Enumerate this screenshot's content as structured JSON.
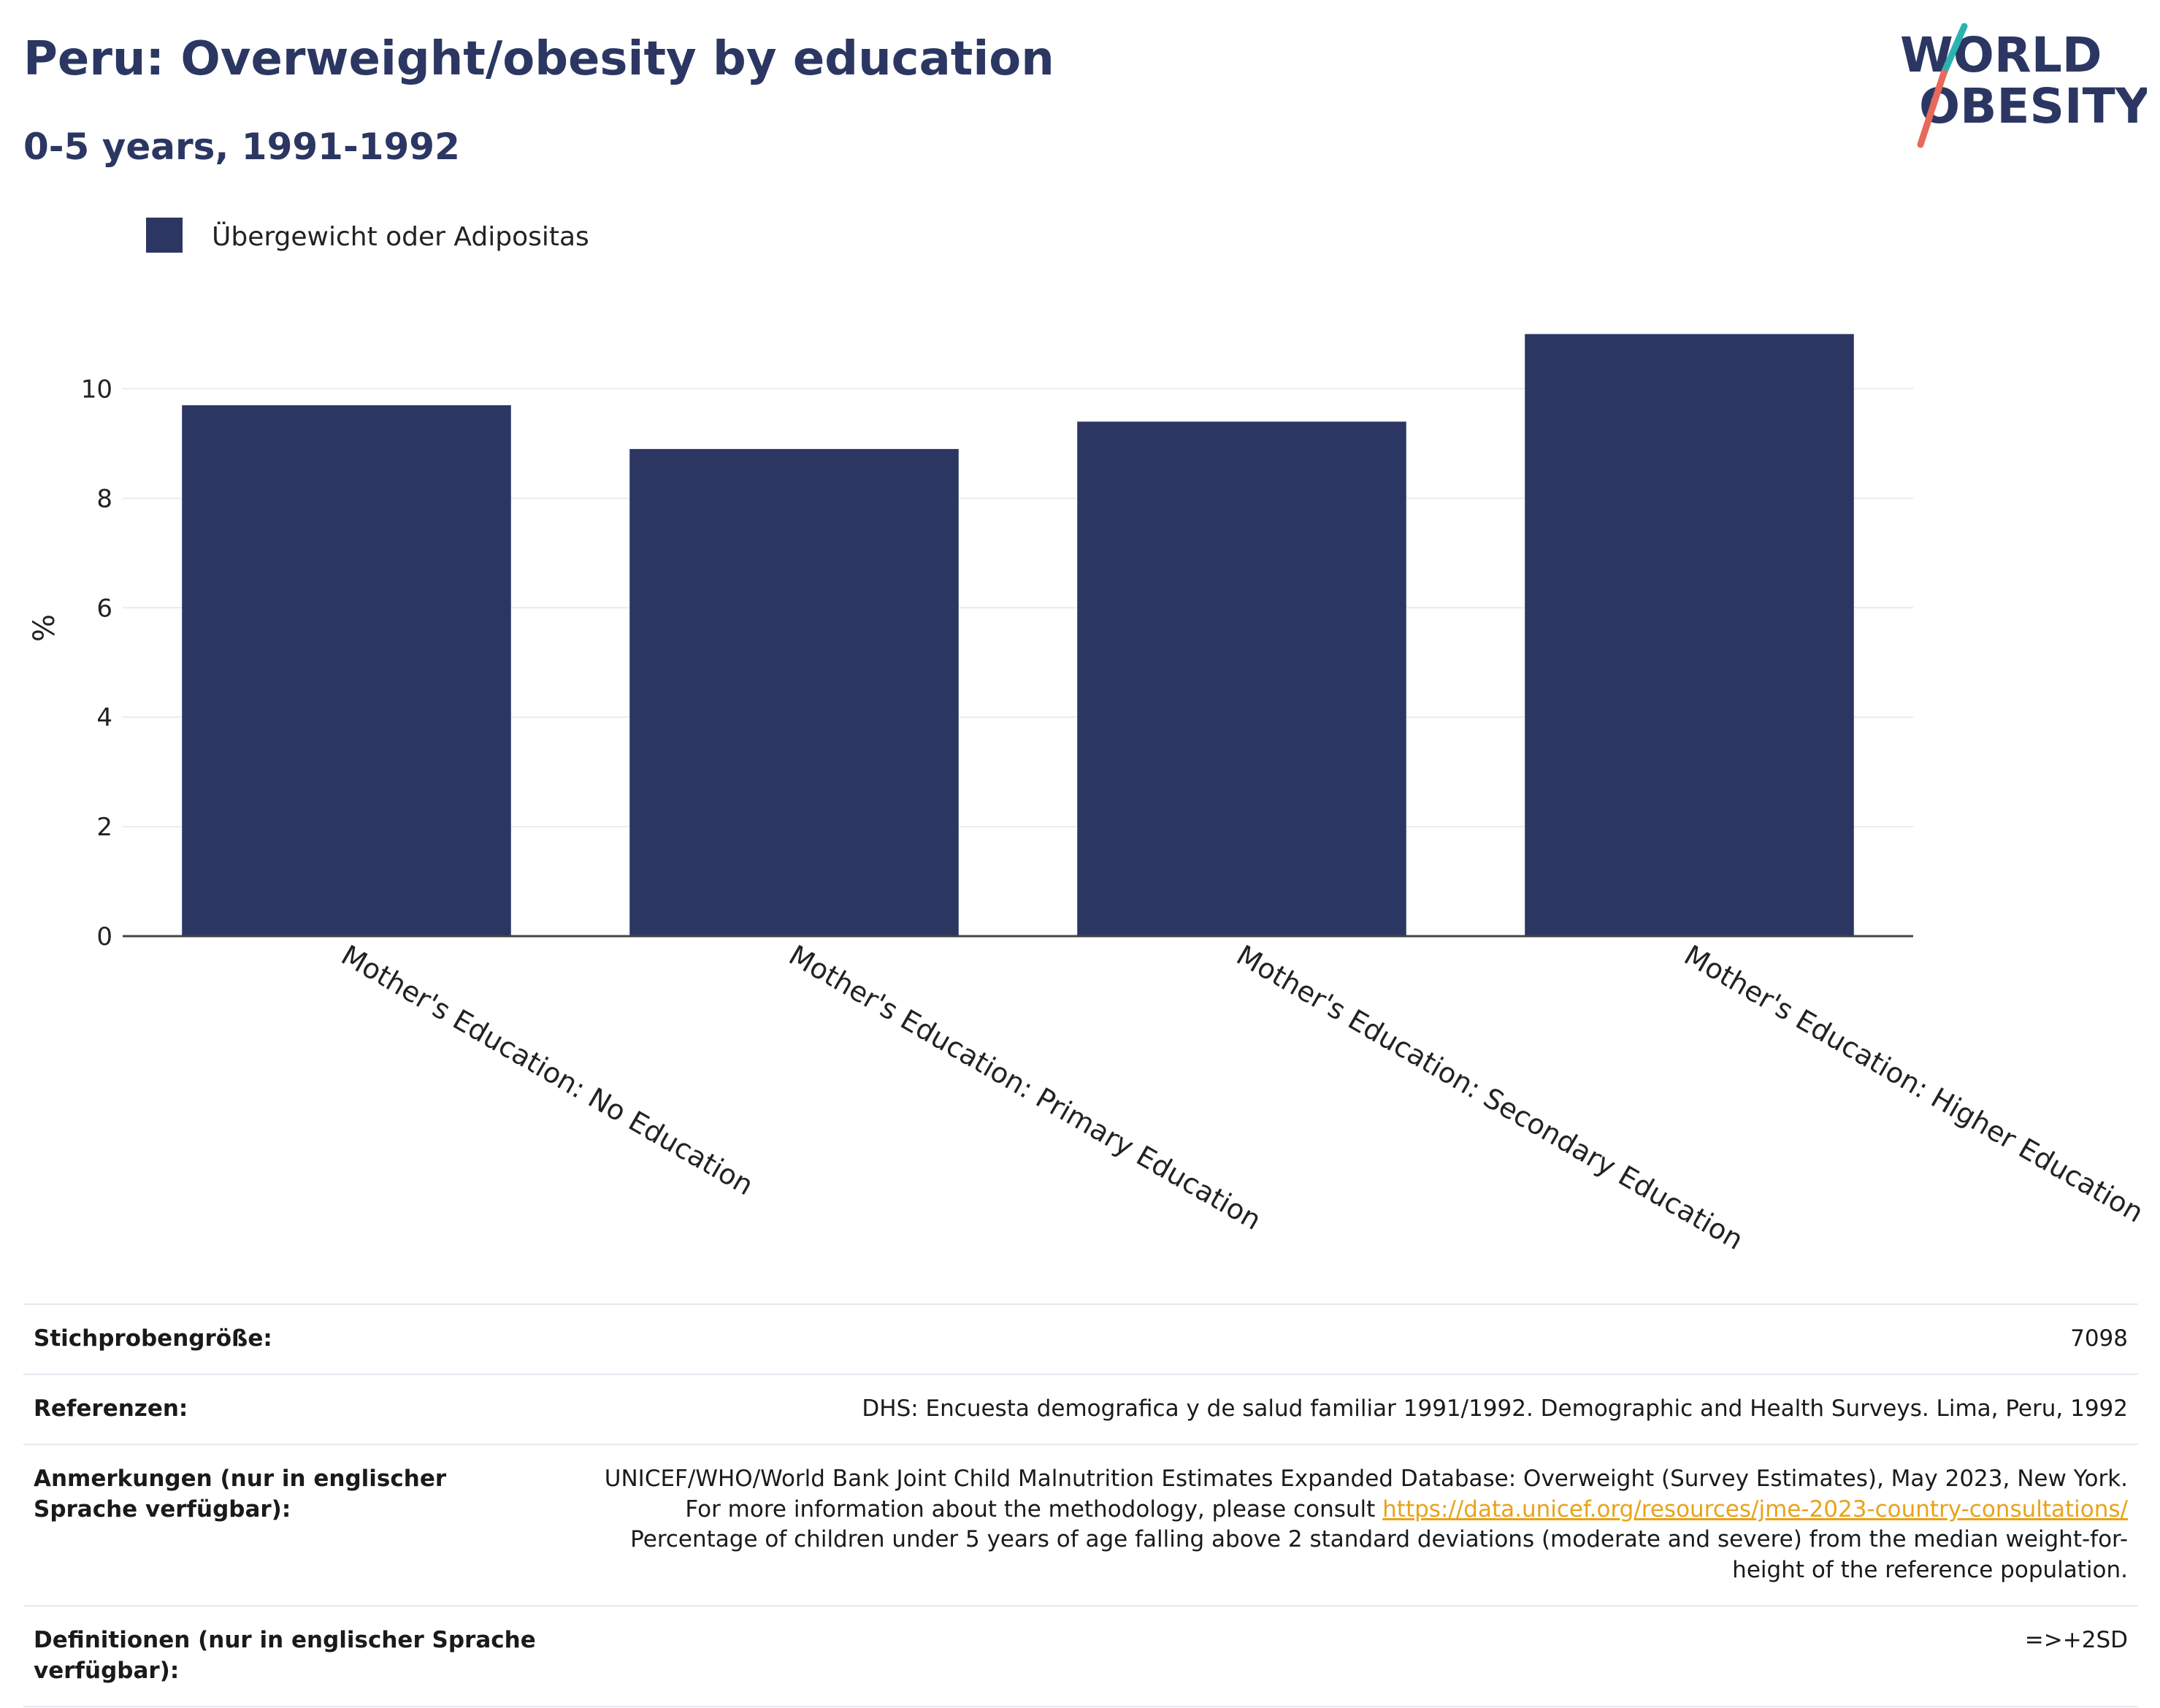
{
  "header": {
    "title": "Peru: Overweight/obesity by education",
    "subtitle": "0-5 years, 1991-1992"
  },
  "logo": {
    "line1": "WORLD",
    "line2": "OBESITY",
    "colors": {
      "text": "#2b3762",
      "slash_top": "#2bb3b1",
      "slash_bottom": "#e8685a"
    }
  },
  "chart_data": {
    "type": "bar",
    "categories": [
      "Mother's Education: No Education",
      "Mother's Education: Primary Education",
      "Mother's Education: Secondary Education",
      "Mother's Education: Higher Education"
    ],
    "series": [
      {
        "name": "Übergewicht oder Adipositas",
        "values": [
          9.7,
          8.9,
          9.4,
          11.0
        ],
        "color": "#2b3762"
      }
    ],
    "ylabel": "%",
    "ylim": [
      0,
      11.5
    ],
    "yticks": [
      0,
      2,
      4,
      6,
      8,
      10
    ],
    "grid": true,
    "legend": "top-left"
  },
  "info": {
    "sample_label": "Stichprobengröße:",
    "sample_value": "7098",
    "references_label": "Referenzen:",
    "references_value": "DHS: Encuesta demografica y de salud familiar 1991/1992. Demographic and Health Surveys. Lima, Peru, 1992",
    "notes_label": "Anmerkungen (nur in englischer Sprache verfügbar):",
    "notes_text1": "UNICEF/WHO/World Bank Joint Child Malnutrition Estimates Expanded Database: Overweight (Survey Estimates), May 2023, New York. For more information about the methodology, please consult",
    "notes_link": "https://data.unicef.org/resources/jme-2023-country-consultations/",
    "notes_text2": "Percentage of children under 5 years of age falling above 2 standard deviations (moderate and severe) from the median weight-for-height of the reference population.",
    "definitions_label": "Definitionen (nur in englischer Sprache verfügbar):",
    "definitions_value": "=>+2SD"
  }
}
